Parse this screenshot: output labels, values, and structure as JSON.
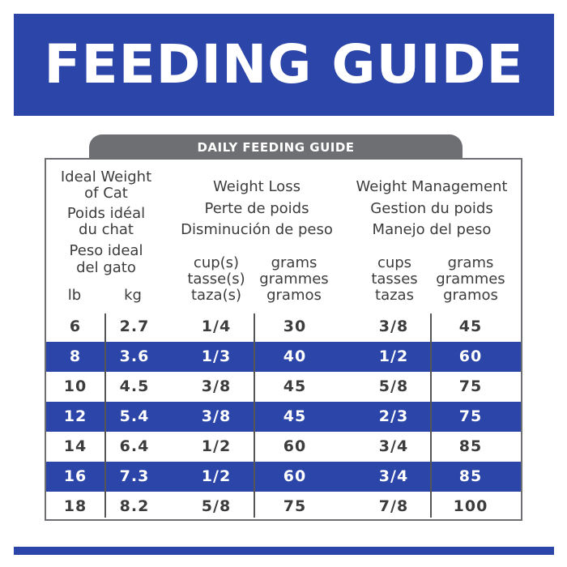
{
  "banner": {
    "title": "FEEDING GUIDE"
  },
  "tab": {
    "label": "DAILY FEEDING GUIDE"
  },
  "headers": {
    "ideal_weight": [
      "Ideal Weight",
      "of Cat",
      "Poids idéal",
      "du chat",
      "Peso ideal",
      "del gato"
    ],
    "lb": "lb",
    "kg": "kg",
    "weight_loss": [
      "Weight Loss",
      "Perte de poids",
      "Disminución de peso"
    ],
    "weight_management": [
      "Weight Management",
      "Gestion du poids",
      "Manejo del peso"
    ],
    "wl_cups": [
      "cup(s)",
      "tasse(s)",
      "taza(s)"
    ],
    "wl_grams": [
      "grams",
      "grammes",
      "gramos"
    ],
    "wm_cups": [
      "cups",
      "tasses",
      "tazas"
    ],
    "wm_grams": [
      "grams",
      "grammes",
      "gramos"
    ]
  },
  "rows": [
    [
      "6",
      "2.7",
      "1/4",
      "30",
      "3/8",
      "45"
    ],
    [
      "8",
      "3.6",
      "1/3",
      "40",
      "1/2",
      "60"
    ],
    [
      "10",
      "4.5",
      "3/8",
      "45",
      "5/8",
      "75"
    ],
    [
      "12",
      "5.4",
      "3/8",
      "45",
      "2/3",
      "75"
    ],
    [
      "14",
      "6.4",
      "1/2",
      "60",
      "3/4",
      "85"
    ],
    [
      "16",
      "7.3",
      "1/2",
      "60",
      "3/4",
      "85"
    ],
    [
      "18",
      "8.2",
      "5/8",
      "75",
      "7/8",
      "100"
    ]
  ],
  "colors": {
    "brand_blue": "#2c45a8",
    "tab_gray": "#6e6f72",
    "text_dark": "#3c3c3c"
  }
}
